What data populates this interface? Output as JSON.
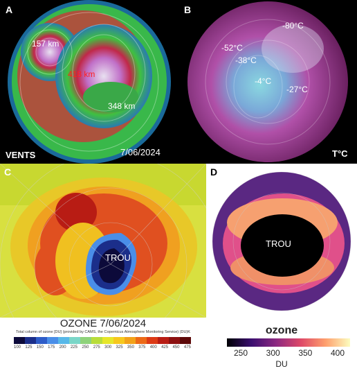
{
  "panels": {
    "a": {
      "letter": "A",
      "label_left": "VENTS",
      "label_date": "7/06/2024",
      "annotations": [
        "157 km",
        "418 km",
        "348 km"
      ]
    },
    "b": {
      "letter": "B",
      "label_right": "T°C",
      "annotations": [
        "-80°C",
        "-52°C",
        "-38°C",
        "-4°C",
        "-27°C"
      ]
    },
    "c": {
      "letter": "C",
      "hole_label": "TROU",
      "title": "OZONE 7/06/2024",
      "source_note": "Total column of ozone [DU] (provided by CAMS, the Copernicus Atmosphere Monitoring Service) (DU)K",
      "scale_ticks": [
        "100",
        "125",
        "150",
        "175",
        "200",
        "225",
        "250",
        "275",
        "300",
        "325",
        "350",
        "375",
        "400",
        "425",
        "450",
        "475"
      ],
      "scale_colors": [
        "#0c0a3a",
        "#1b2e8a",
        "#2e5cc8",
        "#4a8ee8",
        "#58b8e8",
        "#7ad6c8",
        "#8ed27a",
        "#b8dc3a",
        "#e6e62a",
        "#f6c81e",
        "#f2a21a",
        "#ec6a18",
        "#dc3a16",
        "#b81c14",
        "#8c1010",
        "#5c0808"
      ]
    },
    "d": {
      "letter": "D",
      "hole_label": "TROU",
      "colorbar_title": "ozone",
      "colorbar_unit": "DU",
      "colorbar_ticks": [
        "250",
        "300",
        "350",
        "400"
      ]
    }
  },
  "colors": {
    "wind_ring": "#3dd23a",
    "ozone_hole": "#0c0a3a",
    "annotation_red": "#ff2020"
  }
}
